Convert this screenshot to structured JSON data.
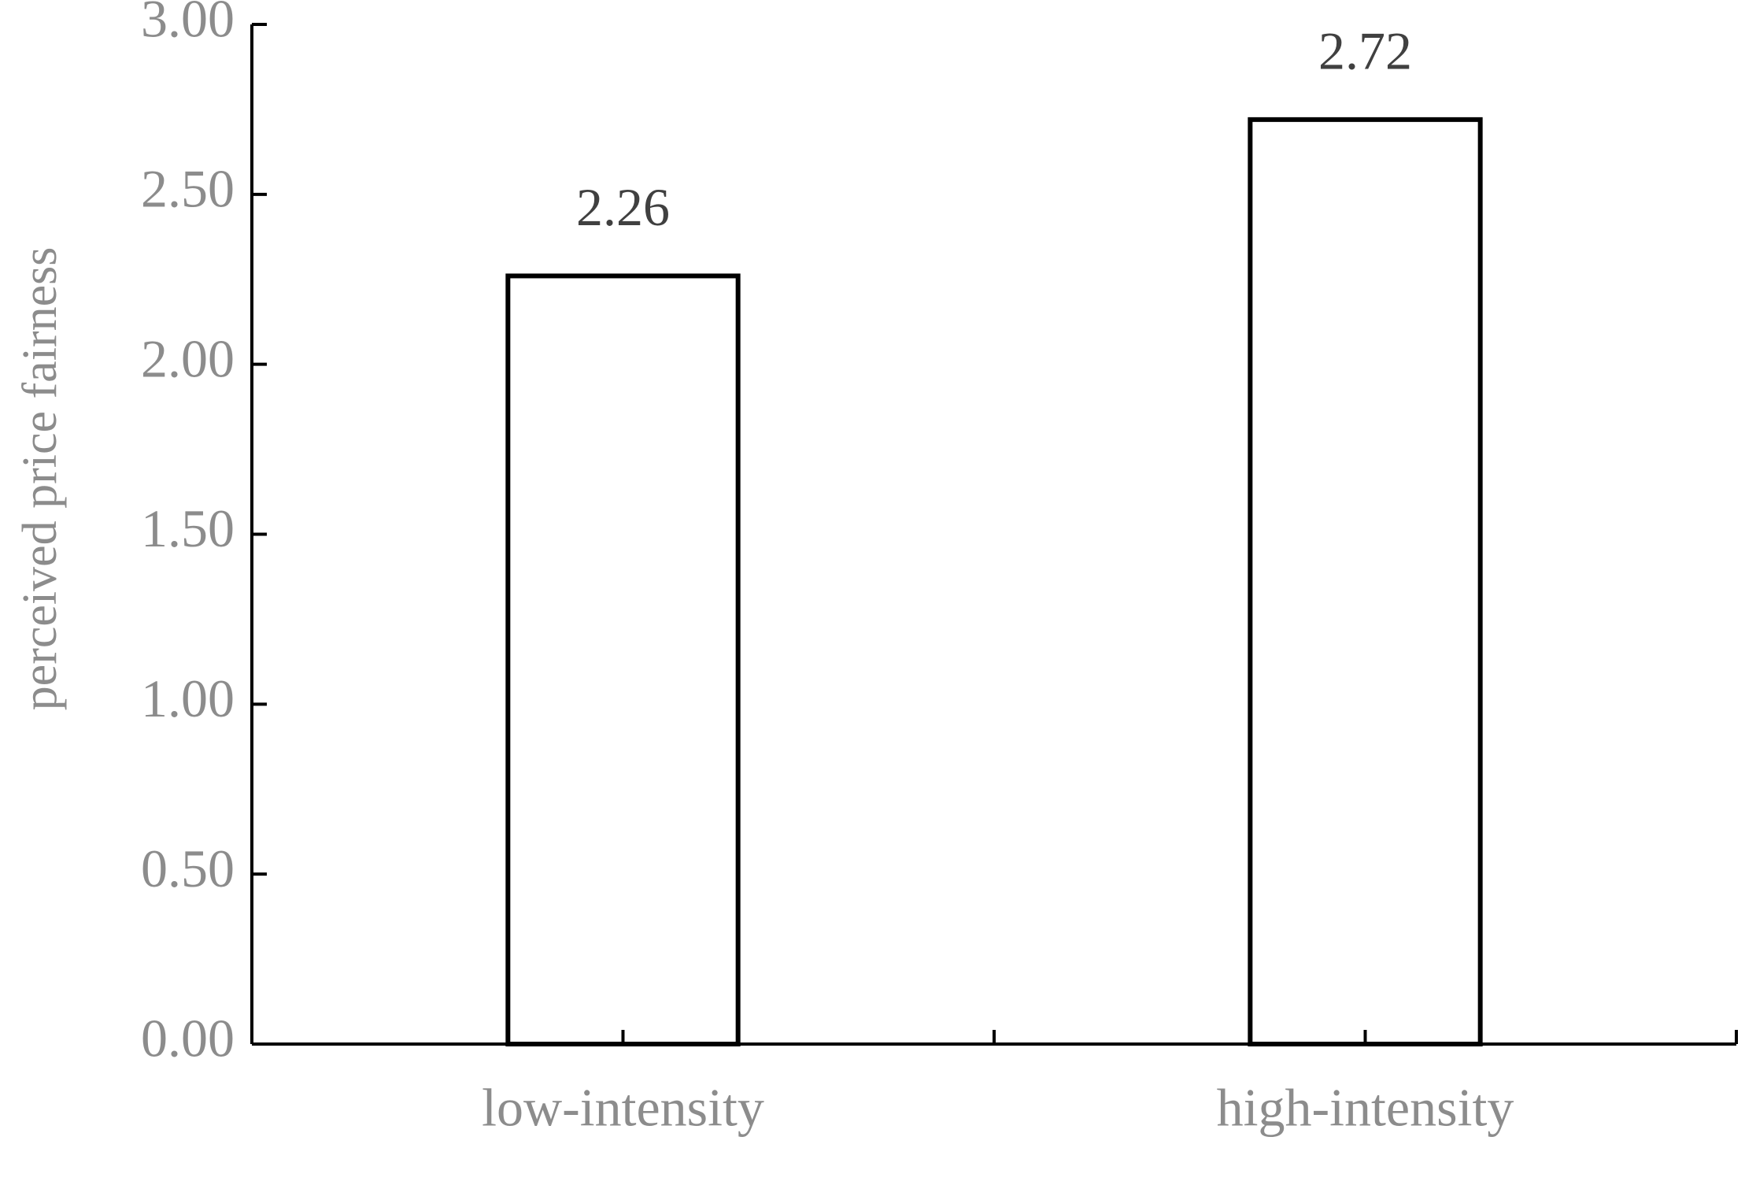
{
  "chart_data": {
    "type": "bar",
    "y_label": "perceived price fairness",
    "categories": [
      "low-intensity",
      "high-intensity"
    ],
    "values": [
      2.26,
      2.72
    ],
    "color": "#ffffff",
    "edge_color": "#000000",
    "ylim": [
      0,
      3
    ],
    "yticks": [
      {
        "value": 0,
        "label": "0.00"
      },
      {
        "value": 0.5,
        "label": "0.50"
      },
      {
        "value": 1,
        "label": "1.00"
      },
      {
        "value": 1.5,
        "label": "1.50"
      },
      {
        "value": 2,
        "label": "2.00"
      },
      {
        "value": 2.5,
        "label": "2.50"
      },
      {
        "value": 3,
        "label": "3.00"
      }
    ],
    "grid": false
  }
}
